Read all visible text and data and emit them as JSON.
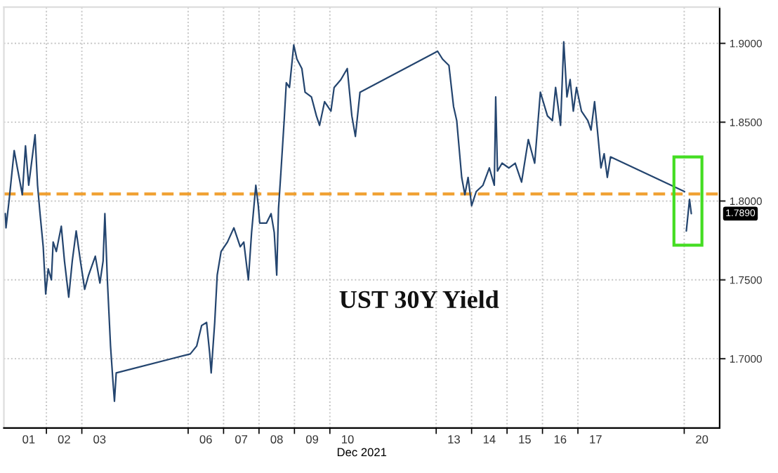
{
  "chart_data": {
    "type": "line",
    "xlabel": "Dec 2021",
    "annotations": [
      "UST 30Y Yield",
      "1.7890"
    ],
    "series": [
      {
        "color": "#24456f",
        "x": [
          "2021-11-30T20:10",
          "2021-11-30T20:38",
          "2021-11-30T22:48",
          "2021-12-01T02:10",
          "2021-12-01T04:19",
          "2021-12-01T07:41",
          "2021-12-01T09:50",
          "2021-12-01T12:00",
          "2021-12-01T14:10",
          "2021-12-01T16:19",
          "2021-12-01T18:00",
          "2021-12-01T19:41",
          "2021-12-01T21:50",
          "2021-12-01T23:31",
          "2021-12-02T01:12",
          "2021-12-02T03:22",
          "2021-12-02T04:34",
          "2021-12-02T06:43",
          "2021-12-02T10:05",
          "2021-12-02T12:14",
          "2021-12-02T15:07",
          "2021-12-02T17:31",
          "2021-12-02T20:10",
          "2021-12-02T23:02",
          "2021-12-03T01:55",
          "2021-12-03T04:34",
          "2021-12-03T09:07",
          "2021-12-03T12:14",
          "2021-12-03T14:24",
          "2021-12-03T15:36",
          "2021-12-03T17:17",
          "2021-12-03T19:26",
          "2021-12-03T21:07",
          "2021-12-03T22:05",
          "2021-12-03T23:17",
          "2021-12-06T01:26",
          "2021-12-06T05:46",
          "2021-12-06T09:07",
          "2021-12-06T12:29",
          "2021-12-06T14:38",
          "2021-12-06T15:36",
          "2021-12-06T18:00",
          "2021-12-06T19:41",
          "2021-12-06T22:19",
          "2021-12-07T02:38",
          "2021-12-07T06:58",
          "2021-12-07T11:17",
          "2021-12-07T13:41",
          "2021-12-07T16:48",
          "2021-12-07T18:58",
          "2021-12-07T21:50",
          "2021-12-07T23:31",
          "2021-12-08T00:29",
          "2021-12-08T05:02",
          "2021-12-08T08:10",
          "2021-12-08T10:19",
          "2021-12-08T12:00",
          "2021-12-08T13:12",
          "2021-12-08T14:53",
          "2021-12-08T17:02",
          "2021-12-08T18:29",
          "2021-12-08T20:38",
          "2021-12-08T23:31",
          "2021-12-09T01:41",
          "2021-12-09T05:02",
          "2021-12-09T07:12",
          "2021-12-09T11:31",
          "2021-12-09T14:53",
          "2021-12-09T17:02",
          "2021-12-09T20:24",
          "2021-12-10T00:43",
          "2021-12-10T02:53",
          "2021-12-10T07:26",
          "2021-12-10T11:46",
          "2021-12-10T14:53",
          "2021-12-10T17:17",
          "2021-12-10T20:24",
          "2021-12-13T00:58",
          "2021-12-13T04:19",
          "2021-12-13T08:38",
          "2021-12-13T11:46",
          "2021-12-13T13:55",
          "2021-12-13T17:17",
          "2021-12-13T19:26",
          "2021-12-13T21:36",
          "2021-12-14T00:00",
          "2021-12-14T03:07",
          "2021-12-14T07:41",
          "2021-12-14T12:00",
          "2021-12-14T15:22",
          "2021-12-14T16:19",
          "2021-12-14T17:31",
          "2021-12-14T20:38",
          "2021-12-15T01:12",
          "2021-12-15T05:31",
          "2021-12-15T09:50",
          "2021-12-15T14:24",
          "2021-12-15T18:43",
          "2021-12-15T22:34",
          "2021-12-16T03:22",
          "2021-12-16T06:43",
          "2021-12-16T08:53",
          "2021-12-16T12:14",
          "2021-12-16T14:24",
          "2021-12-16T16:34",
          "2021-12-16T18:43",
          "2021-12-16T20:53",
          "2021-12-16T23:02",
          "2021-12-17T02:24",
          "2021-12-17T06:43",
          "2021-12-17T08:53",
          "2021-12-17T11:17",
          "2021-12-17T13:12",
          "2021-12-17T15:36",
          "2021-12-17T17:46",
          "2021-12-17T19:55",
          "2021-12-17T22:05",
          "2021-12-20T00:14",
          "2021-12-20T00:43",
          "2021-12-20T01:26",
          "2021-12-20T03:36",
          "2021-12-20T04:48"
        ],
        "values": [
          1.792,
          1.783,
          1.801,
          1.832,
          1.821,
          1.804,
          1.835,
          1.81,
          1.826,
          1.842,
          1.81,
          1.792,
          1.771,
          1.741,
          1.757,
          1.75,
          1.774,
          1.768,
          1.784,
          1.762,
          1.739,
          1.762,
          1.781,
          1.762,
          1.744,
          1.753,
          1.765,
          1.748,
          1.762,
          1.792,
          1.75,
          1.708,
          1.685,
          1.673,
          1.691,
          1.703,
          1.708,
          1.721,
          1.723,
          1.703,
          1.691,
          1.723,
          1.753,
          1.768,
          1.774,
          1.783,
          1.771,
          1.774,
          1.75,
          1.78,
          1.81,
          1.797,
          1.786,
          1.786,
          1.792,
          1.78,
          1.753,
          1.795,
          1.819,
          1.851,
          1.875,
          1.872,
          1.899,
          1.89,
          1.884,
          1.869,
          1.866,
          1.854,
          1.848,
          1.863,
          1.857,
          1.872,
          1.877,
          1.884,
          1.854,
          1.841,
          1.869,
          1.895,
          1.89,
          1.886,
          1.86,
          1.851,
          1.815,
          1.804,
          1.815,
          1.797,
          1.806,
          1.81,
          1.821,
          1.81,
          1.866,
          1.819,
          1.824,
          1.821,
          1.824,
          1.812,
          1.839,
          1.824,
          1.869,
          1.854,
          1.851,
          1.872,
          1.848,
          1.901,
          1.866,
          1.877,
          1.857,
          1.872,
          1.857,
          1.851,
          1.845,
          1.863,
          1.845,
          1.821,
          1.83,
          1.815,
          1.828,
          1.806,
          null,
          1.781,
          1.801,
          1.792
        ]
      }
    ],
    "xlim": [
      "2021-11-30T19:12",
      "2021-12-21T00:00"
    ],
    "xticks": [
      {
        "value": "2021-12-01T12:00",
        "label": "01"
      },
      {
        "value": "2021-12-02T12:00",
        "label": "02"
      },
      {
        "value": "2021-12-03T12:00",
        "label": "03"
      },
      {
        "value": "2021-12-06T12:00",
        "label": "06"
      },
      {
        "value": "2021-12-07T12:00",
        "label": "07"
      },
      {
        "value": "2021-12-08T12:00",
        "label": "08"
      },
      {
        "value": "2021-12-09T12:00",
        "label": "09"
      },
      {
        "value": "2021-12-10T12:00",
        "label": "10"
      },
      {
        "value": "2021-12-13T12:00",
        "label": "13"
      },
      {
        "value": "2021-12-14T12:00",
        "label": "14"
      },
      {
        "value": "2021-12-15T12:00",
        "label": "15"
      },
      {
        "value": "2021-12-16T12:00",
        "label": "16"
      },
      {
        "value": "2021-12-17T12:00",
        "label": "17"
      },
      {
        "value": "2021-12-20T12:00",
        "label": "20"
      },
      {
        "value": "2021-12-02T00:00",
        "label": null
      },
      {
        "value": "2021-12-03T00:00",
        "label": null
      },
      {
        "value": "2021-12-06T00:00",
        "label": null
      },
      {
        "value": "2021-12-07T00:00",
        "label": null
      },
      {
        "value": "2021-12-08T00:00",
        "label": null
      },
      {
        "value": "2021-12-09T00:00",
        "label": null
      },
      {
        "value": "2021-12-10T00:00",
        "label": null
      },
      {
        "value": "2021-12-13T00:00",
        "label": null
      },
      {
        "value": "2021-12-14T00:00",
        "label": null
      },
      {
        "value": "2021-12-15T00:00",
        "label": null
      },
      {
        "value": "2021-12-16T00:00",
        "label": null
      },
      {
        "value": "2021-12-17T00:00",
        "label": null
      },
      {
        "value": "2021-12-20T00:00",
        "label": null
      }
    ],
    "ylim": [
      1.656,
      1.923
    ],
    "yticks": [
      {
        "value": 1.7,
        "label": "1.7000"
      },
      {
        "value": 1.75,
        "label": "1.7500"
      },
      {
        "value": 1.8,
        "label": "1.8000"
      },
      {
        "value": 1.85,
        "label": "1.8500"
      },
      {
        "value": 1.9,
        "label": "1.9000"
      }
    ],
    "ref_lines": [
      {
        "axis": "y",
        "value": 1.8045,
        "color": "#f0a030",
        "line_style": "dashed"
      }
    ],
    "grid": true,
    "legend": false,
    "marker": "none",
    "line_style": "solid"
  }
}
